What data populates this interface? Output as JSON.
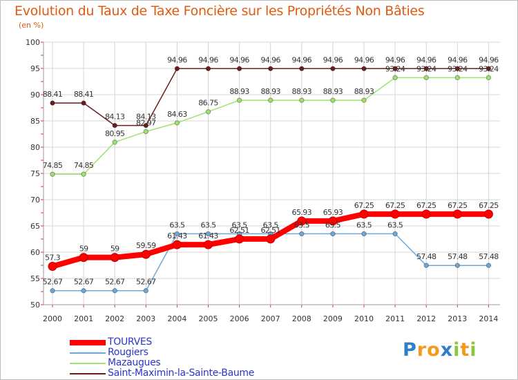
{
  "chart_data": {
    "type": "line",
    "title": "Evolution du Taux de Taxe Foncière sur les Propriétés Non Bâties",
    "unit_label": "(en %)",
    "xlabel": "",
    "ylabel": "",
    "ylim": [
      50,
      100
    ],
    "yticks": [
      50,
      55,
      60,
      65,
      70,
      75,
      80,
      85,
      90,
      95,
      100
    ],
    "categories": [
      "2000",
      "2001",
      "2002",
      "2003",
      "2004",
      "2005",
      "2006",
      "2007",
      "2008",
      "2009",
      "2010",
      "2011",
      "2012",
      "2013",
      "2014"
    ],
    "grid": true,
    "legend_position": "bottom-left",
    "series": [
      {
        "name": "Saint-Maximin-la-Sainte-Baume",
        "color": "#6b1c1c",
        "values": [
          88.41,
          88.41,
          84.13,
          84.13,
          94.96,
          94.96,
          94.96,
          94.96,
          94.96,
          94.96,
          94.96,
          94.96,
          94.96,
          94.96,
          94.96
        ],
        "labels": [
          "88.41",
          "88.41",
          "84.13",
          "84.13",
          "94.96",
          "94.96",
          "94.96",
          "94.96",
          "94.96",
          "94.96",
          "94.96",
          "94.96",
          "94.96",
          "94.96",
          "94.96"
        ]
      },
      {
        "name": "Mazaugues",
        "color": "#9de36e",
        "values": [
          74.85,
          74.85,
          80.95,
          82.97,
          84.63,
          86.75,
          88.93,
          88.93,
          88.93,
          88.93,
          88.93,
          93.24,
          93.24,
          93.24,
          93.24
        ],
        "labels": [
          "74.85",
          "74.85",
          "80.95",
          "82.97",
          "84.63",
          "86.75",
          "88.93",
          "88.93",
          "88.93",
          "88.93",
          "88.93",
          "93.24",
          "93.24",
          "93.24",
          "93.24"
        ]
      },
      {
        "name": "Rougiers",
        "color": "#6fa8d6",
        "values": [
          52.67,
          52.67,
          52.67,
          52.67,
          63.5,
          63.5,
          63.5,
          63.5,
          63.5,
          63.5,
          63.5,
          63.5,
          57.48,
          57.48,
          57.48
        ],
        "labels": [
          "52.67",
          "52.67",
          "52.67",
          "52.67",
          "63.5",
          "63.5",
          "63.5",
          "63.5",
          "63.5",
          "63.5",
          "63.5",
          "63.5",
          "57.48",
          "57.48",
          "57.48"
        ]
      },
      {
        "name": "TOURVES",
        "color": "#ff0000",
        "values": [
          57.3,
          59,
          59,
          59.59,
          61.43,
          61.43,
          62.51,
          62.51,
          65.93,
          65.93,
          67.25,
          67.25,
          67.25,
          67.25,
          67.25
        ],
        "labels": [
          "57.3",
          "59",
          "59",
          "59.59",
          "61.43",
          "61.43",
          "62.51",
          "62.51",
          "65.93",
          "65.93",
          "67.25",
          "67.25",
          "67.25",
          "67.25",
          "67.25"
        ]
      }
    ]
  },
  "legend": {
    "items": [
      {
        "label": "TOURVES",
        "color": "#ff0000",
        "thick": true
      },
      {
        "label": "Rougiers",
        "color": "#6fa8d6",
        "thick": false
      },
      {
        "label": "Mazaugues",
        "color": "#9de36e",
        "thick": false
      },
      {
        "label": "Saint-Maximin-la-Sainte-Baume",
        "color": "#6b1c1c",
        "thick": false
      }
    ]
  },
  "brand": {
    "letters": [
      "P",
      "r",
      "o",
      "x",
      "i",
      "t",
      "i"
    ],
    "colors": [
      "#2e7fc6",
      "#f29a1c",
      "#f29a1c",
      "#2e7fc6",
      "#8cc63f",
      "#f29a1c",
      "#8cc63f"
    ]
  },
  "colors": {
    "title": "#e05a10",
    "grid": "#d4d4d4",
    "axis_ticks": "#e0301e"
  }
}
